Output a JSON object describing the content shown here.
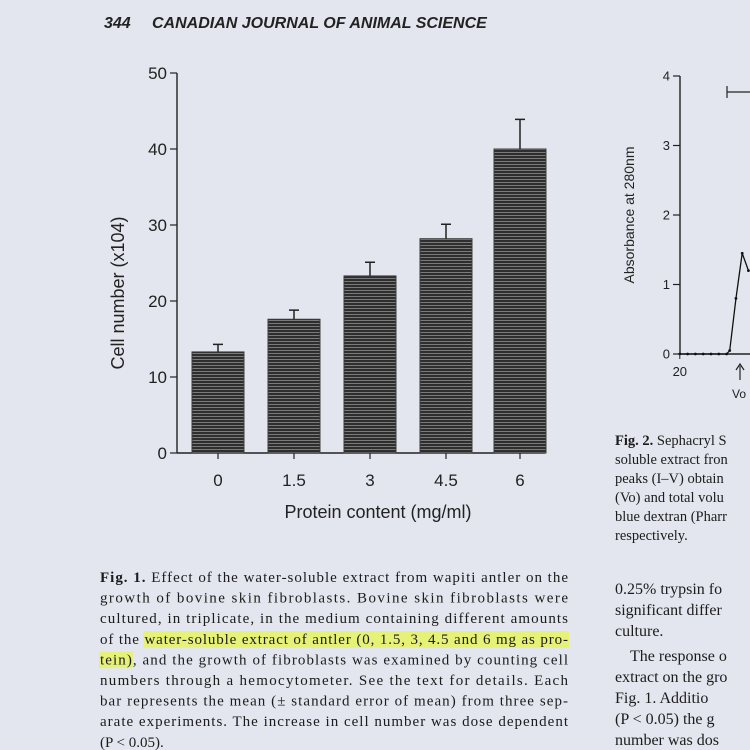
{
  "header": {
    "page": "344",
    "journal": "CANADIAN JOURNAL OF ANIMAL SCIENCE"
  },
  "chart_data": [
    {
      "type": "bar",
      "ylabel": "Cell number (x104)",
      "xlabel": "Protein content (mg/ml)",
      "categories": [
        "0",
        "1.5",
        "3",
        "4.5",
        "6"
      ],
      "values": [
        13.3,
        17.6,
        23.3,
        28.2,
        40
      ],
      "errors": [
        1.0,
        1.2,
        1.8,
        1.9,
        3.9
      ],
      "color": "#3c3c3c",
      "ylim": [
        0,
        50
      ],
      "yticks": [
        0,
        10,
        20,
        30,
        40,
        50
      ]
    },
    {
      "type": "line",
      "ylabel": "Absorbance at 280nm",
      "annotation": "Vo",
      "x": [
        20,
        20.5,
        21,
        21.5,
        22,
        22.5,
        23,
        23.2,
        23.6,
        24,
        24.4
      ],
      "series": [
        {
          "color": "#111111",
          "values": [
            0,
            0,
            0,
            0,
            0,
            0,
            0,
            0.05,
            0.8,
            1.45,
            1.2
          ]
        }
      ],
      "xlim": [
        19.5,
        24.5
      ],
      "xticks": [
        20
      ],
      "ylim": [
        0,
        4
      ],
      "yticks": [
        0,
        1,
        2,
        3,
        4
      ]
    }
  ],
  "caption": {
    "lines": [
      [
        {
          "text": "Fig. 1. ",
          "bold": true
        },
        {
          "text": "Effect of the water-soluble extract from wapiti antler on the"
        }
      ],
      [
        {
          "text": "growth of bovine skin fibroblasts. Bovine skin fibroblasts were"
        }
      ],
      [
        {
          "text": "cultured, in triplicate, in the medium containing different amounts"
        }
      ],
      [
        {
          "text": "of the "
        },
        {
          "text": "water-soluble extract of antler (0, 1.5, 3, 4.5 and 6 mg as pro-",
          "highlight": true
        }
      ],
      [
        {
          "text": "tein)",
          "highlight": true
        },
        {
          "text": ", and the growth of fibroblasts was examined by counting cell"
        }
      ],
      [
        {
          "text": "numbers through a hemocytometer. See the text for details. Each"
        }
      ],
      [
        {
          "text": "bar represents the mean (± standard error of mean) from three sep-"
        }
      ],
      [
        {
          "text": "arate experiments. The increase in cell number was dose dependent"
        }
      ],
      [
        {
          "text": "(P < 0.05)."
        }
      ]
    ]
  },
  "fig2_caption": [
    [
      {
        "text": "Fig. 2. ",
        "bold": true
      },
      {
        "text": "Sephacryl S"
      }
    ],
    [
      {
        "text": "soluble extract fron"
      }
    ],
    [
      {
        "text": "peaks (I–V) obtain"
      }
    ],
    [
      {
        "text": "(Vo) and total volu"
      }
    ],
    [
      {
        "text": "blue dextran (Pharr"
      }
    ],
    [
      {
        "text": "respectively."
      }
    ]
  ],
  "body_text": [
    "0.25% trypsin fo",
    "significant differ",
    "culture.",
    "The response o",
    "extract on the gro",
    "Fig. 1.  Additio",
    "(P < 0.05) the g",
    "number was dos"
  ]
}
